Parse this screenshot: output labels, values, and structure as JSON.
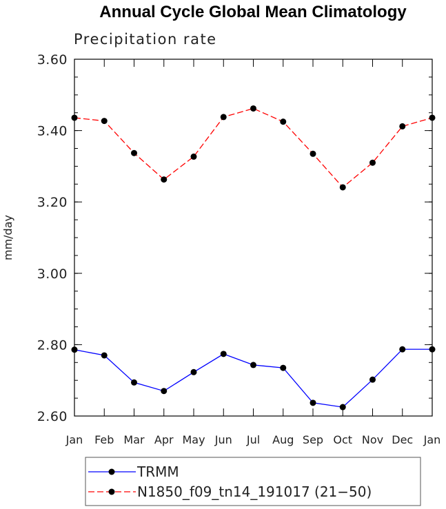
{
  "chart_data": {
    "type": "line",
    "title": "Annual Cycle Global Mean Climatology",
    "subtitle": "Precipitation rate",
    "xlabel": "",
    "ylabel": "mm/day",
    "ylim": [
      2.6,
      3.6
    ],
    "yticks": [
      2.6,
      2.8,
      3.0,
      3.2,
      3.4,
      3.6
    ],
    "ytick_labels": [
      "2.60",
      "2.80",
      "3.00",
      "3.20",
      "3.40",
      "3.60"
    ],
    "categories": [
      "Jan",
      "Feb",
      "Mar",
      "Apr",
      "May",
      "Jun",
      "Jul",
      "Aug",
      "Sep",
      "Oct",
      "Nov",
      "Dec",
      "Jan"
    ],
    "grid": false,
    "legend_position": "bottom",
    "series": [
      {
        "name": "TRMM",
        "color": "#0000ff",
        "dash": "solid",
        "marker": "filled-circle",
        "values": [
          2.786,
          2.77,
          2.694,
          2.67,
          2.723,
          2.774,
          2.743,
          2.735,
          2.637,
          2.625,
          2.702,
          2.787,
          2.787
        ]
      },
      {
        "name": "N1850_f09_tn14_191017 (21−50)",
        "color": "#ff0000",
        "dash": "dashed",
        "marker": "filled-circle",
        "values": [
          3.436,
          3.427,
          3.337,
          3.263,
          3.327,
          3.438,
          3.462,
          3.425,
          3.335,
          3.241,
          3.31,
          3.412,
          3.436
        ]
      }
    ]
  }
}
